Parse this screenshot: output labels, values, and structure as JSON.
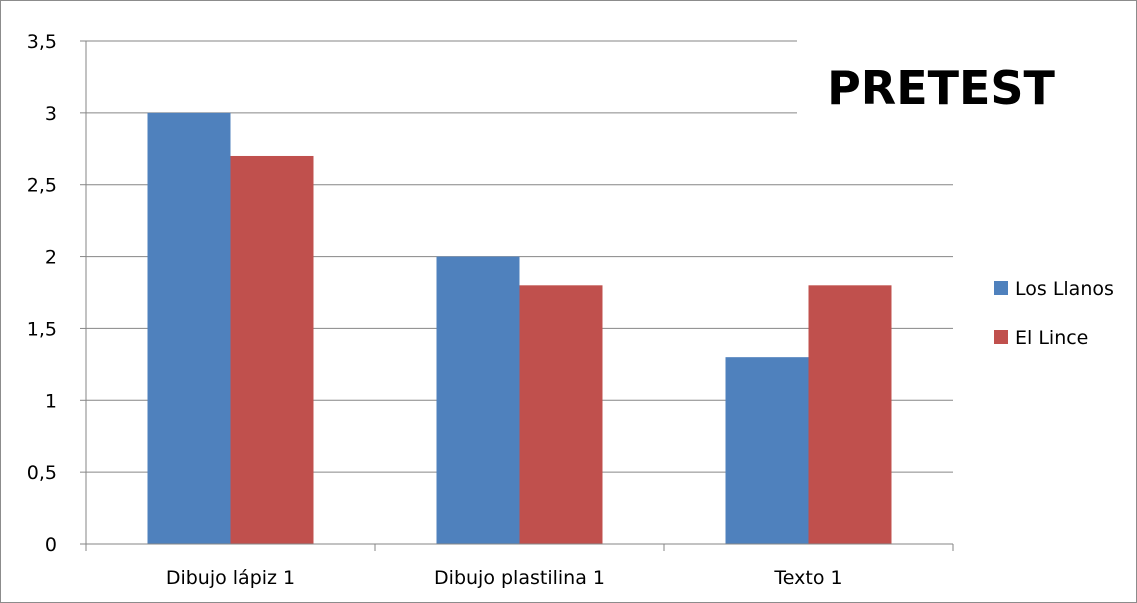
{
  "chart_data": {
    "type": "bar",
    "title": "PRETEST",
    "categories": [
      "Dibujo lápiz 1",
      "Dibujo plastilina 1",
      "Texto 1"
    ],
    "series": [
      {
        "name": "Los Llanos",
        "values": [
          3.0,
          2.0,
          1.3
        ],
        "color": "#4f81bd"
      },
      {
        "name": "El Lince",
        "values": [
          2.7,
          1.8,
          1.8
        ],
        "color": "#c0504d"
      }
    ],
    "xlabel": "",
    "ylabel": "",
    "ylim": [
      0,
      3.5
    ],
    "yticks": [
      "0",
      "0,5",
      "1",
      "1,5",
      "2",
      "2,5",
      "3",
      "3,5"
    ],
    "grid": true,
    "legend_position": "right"
  }
}
